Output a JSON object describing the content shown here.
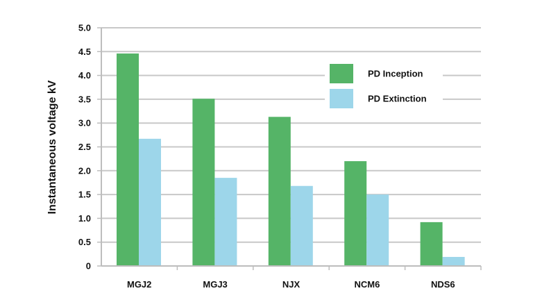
{
  "chart_data": {
    "type": "bar",
    "categories": [
      "MGJ2",
      "MGJ3",
      "NJX",
      "NCM6",
      "NDS6"
    ],
    "series": [
      {
        "name": "PD Inception",
        "values": [
          4.46,
          3.51,
          3.13,
          2.2,
          0.92
        ],
        "color": "#55b467"
      },
      {
        "name": "PD Extinction",
        "values": [
          2.67,
          1.85,
          1.68,
          1.5,
          0.19
        ],
        "color": "#9dd6ea"
      }
    ],
    "ylabel": "Instantaneous voltage kV",
    "xlabel": "",
    "ylim": [
      0,
      5.0
    ],
    "yticks": [
      "0",
      "0.5",
      "1.0",
      "1.5",
      "2.0",
      "2.5",
      "3.0",
      "3.5",
      "4.0",
      "4.5",
      "5.0"
    ],
    "grid": true,
    "grid_color": "#c8c8c8",
    "legend_position": "top-right"
  }
}
